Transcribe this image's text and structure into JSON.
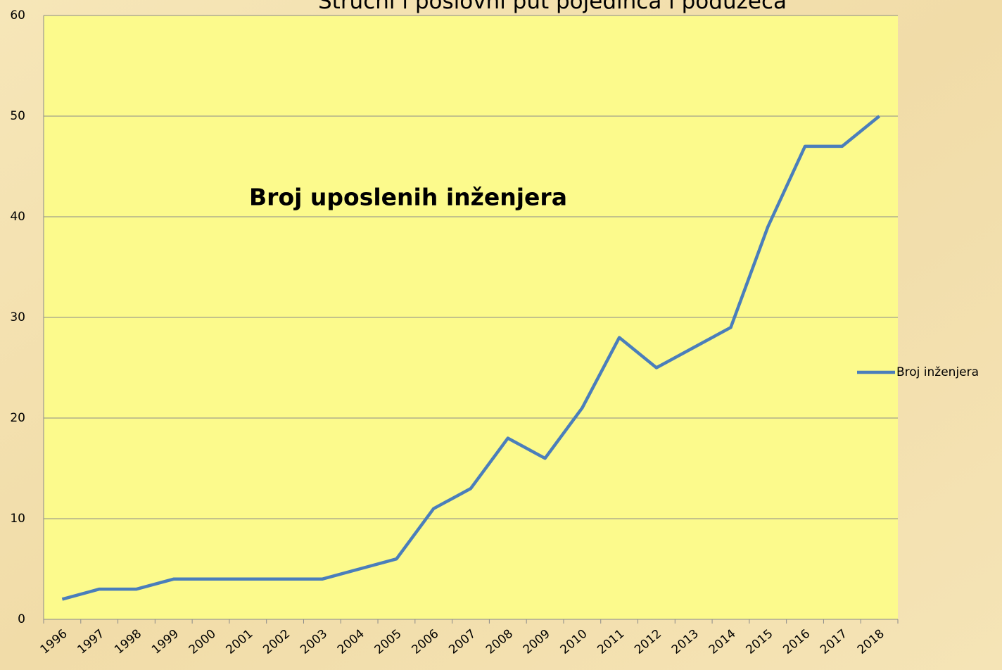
{
  "chart_data": {
    "type": "line",
    "title": "Stručni i poslovni put pojedinca i poduzeća",
    "annotation": "Broj uposlenih inženjera",
    "categories": [
      "1996",
      "1997",
      "1998",
      "1999",
      "2000",
      "2001",
      "2002",
      "2003",
      "2004",
      "2005",
      "2006",
      "2007",
      "2008",
      "2009",
      "2010",
      "2011",
      "2012",
      "2013",
      "2014",
      "2015",
      "2016",
      "2017",
      "2018"
    ],
    "series": [
      {
        "name": "Broj inženjera",
        "color": "#4a7ebb",
        "values": [
          2,
          3,
          3,
          4,
          4,
          4,
          4,
          4,
          5,
          6,
          11,
          13,
          18,
          16,
          21,
          28,
          25,
          27,
          29,
          39,
          47,
          47,
          50
        ]
      }
    ],
    "ylim": [
      0,
      60
    ],
    "yticks": [
      0,
      10,
      20,
      30,
      40,
      50,
      60
    ],
    "grid": true,
    "legend": "right"
  }
}
